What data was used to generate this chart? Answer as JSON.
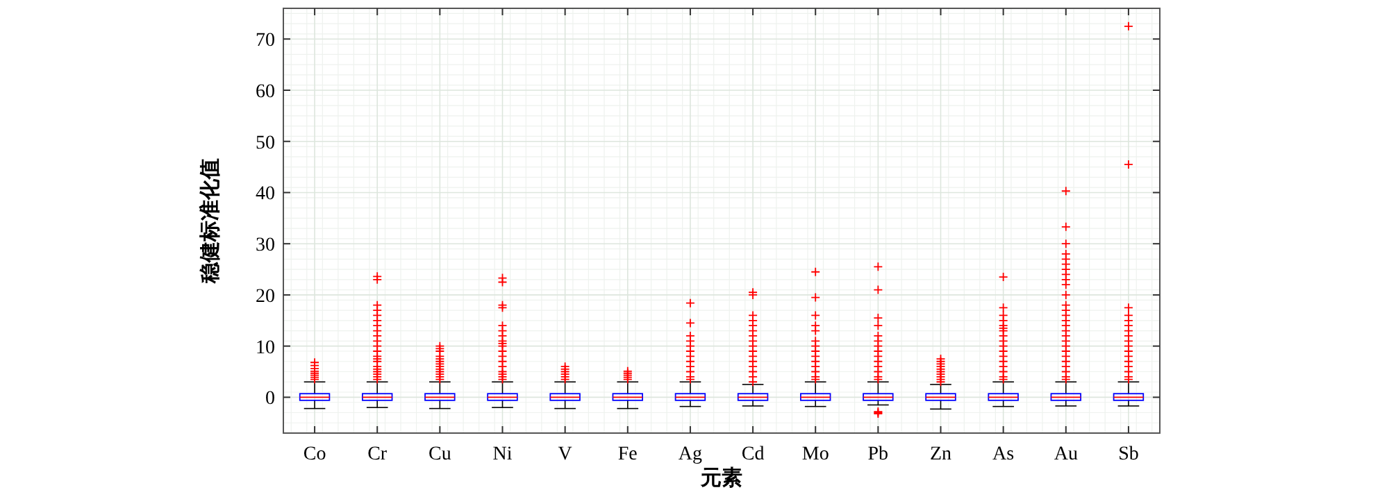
{
  "chart_data": {
    "type": "box",
    "xlabel": "元素",
    "ylabel": "稳健标准化值",
    "categories": [
      "Co",
      "Cr",
      "Cu",
      "Ni",
      "V",
      "Fe",
      "Ag",
      "Cd",
      "Mo",
      "Pb",
      "Zn",
      "As",
      "Au",
      "Sb"
    ],
    "boxes": [
      {
        "low": -2.2,
        "q1": -0.6,
        "median": 0,
        "q3": 0.7,
        "high": 3,
        "outliers": [
          3.5,
          3.9,
          4.3,
          4.7,
          5.1,
          5.6,
          6.2,
          6.8
        ]
      },
      {
        "low": -2,
        "q1": -0.6,
        "median": 0,
        "q3": 0.7,
        "high": 3,
        "outliers": [
          3.5,
          4,
          4.5,
          5,
          5.5,
          6,
          7,
          7.5,
          8,
          9,
          10,
          11,
          12,
          13,
          14,
          15,
          16,
          17,
          18,
          23,
          23.6
        ]
      },
      {
        "low": -2.2,
        "q1": -0.6,
        "median": 0,
        "q3": 0.7,
        "high": 3,
        "outliers": [
          3.5,
          4,
          4.5,
          5,
          5.5,
          6,
          6.5,
          7,
          7.5,
          8,
          9,
          9.5,
          10
        ]
      },
      {
        "low": -2,
        "q1": -0.6,
        "median": 0,
        "q3": 0.7,
        "high": 3,
        "outliers": [
          3.5,
          4,
          4.5,
          5,
          6,
          7,
          8,
          9,
          10,
          10.5,
          11,
          12,
          13,
          14,
          17.5,
          18,
          22.5,
          23.3
        ]
      },
      {
        "low": -2.2,
        "q1": -0.6,
        "median": 0,
        "q3": 0.7,
        "high": 3,
        "outliers": [
          3.5,
          4,
          4.5,
          5,
          5.5,
          6
        ]
      },
      {
        "low": -2.2,
        "q1": -0.6,
        "median": 0,
        "q3": 0.7,
        "high": 3,
        "outliers": [
          3.5,
          3.9,
          4.3,
          4.7,
          5.1
        ]
      },
      {
        "low": -1.8,
        "q1": -0.6,
        "median": 0,
        "q3": 0.7,
        "high": 3,
        "outliers": [
          3.5,
          4,
          5,
          6,
          7,
          8,
          9,
          10,
          11,
          12,
          14.5,
          18.4
        ]
      },
      {
        "low": -1.7,
        "q1": -0.6,
        "median": 0,
        "q3": 0.7,
        "high": 2.5,
        "outliers": [
          3,
          4,
          5,
          6,
          7,
          8,
          9,
          10,
          11,
          12,
          13,
          14,
          15,
          16,
          20,
          20.5
        ]
      },
      {
        "low": -1.8,
        "q1": -0.6,
        "median": 0,
        "q3": 0.7,
        "high": 3,
        "outliers": [
          3.5,
          4,
          5,
          6,
          7,
          8,
          9,
          10,
          11,
          13,
          14,
          16,
          19.5,
          24.5
        ]
      },
      {
        "low": -1.5,
        "q1": -0.6,
        "median": 0,
        "q3": 0.7,
        "high": 3,
        "outliers": [
          -2.8,
          -3,
          -3.2,
          3.5,
          4,
          5,
          6,
          7,
          8,
          9,
          10,
          11,
          12,
          14,
          15.5,
          21,
          25.5
        ]
      },
      {
        "low": -2.3,
        "q1": -0.6,
        "median": 0,
        "q3": 0.7,
        "high": 2.5,
        "outliers": [
          3,
          3.5,
          4,
          4.5,
          5,
          5.5,
          6,
          6.5,
          7,
          7.5
        ]
      },
      {
        "low": -1.8,
        "q1": -0.6,
        "median": 0,
        "q3": 0.7,
        "high": 3,
        "outliers": [
          3.5,
          4,
          5,
          6,
          7,
          8,
          9,
          10,
          11,
          12,
          13,
          13.5,
          14,
          15,
          16,
          17.5,
          23.5
        ]
      },
      {
        "low": -1.7,
        "q1": -0.6,
        "median": 0,
        "q3": 0.7,
        "high": 3,
        "outliers": [
          3.5,
          4,
          5,
          6,
          7,
          8,
          9,
          10,
          11,
          12,
          13,
          14,
          15,
          16,
          17,
          18,
          20,
          22,
          23,
          24,
          25,
          26,
          27,
          28,
          30,
          33.3,
          40.3
        ]
      },
      {
        "low": -1.7,
        "q1": -0.6,
        "median": 0,
        "q3": 0.7,
        "high": 3,
        "outliers": [
          3.5,
          4,
          5,
          6,
          7,
          8,
          9,
          10,
          11,
          12,
          13,
          14,
          15,
          16,
          17.5,
          45.5,
          72.5
        ]
      }
    ],
    "ylim": [
      -7,
      76
    ],
    "yticks": [
      0,
      10,
      20,
      30,
      40,
      50,
      60,
      70
    ],
    "grid": true,
    "marker": "cross"
  }
}
